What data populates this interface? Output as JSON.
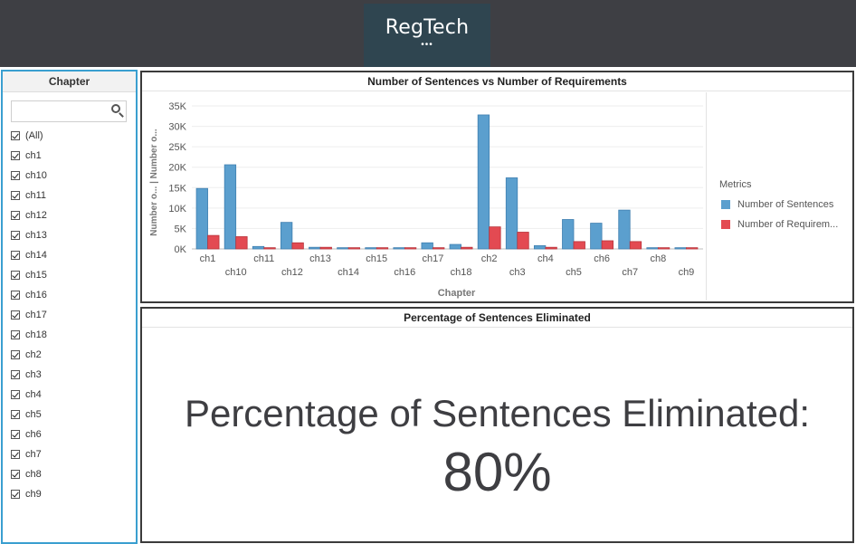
{
  "brand": {
    "title": "RegTech",
    "dots": "•••"
  },
  "filter": {
    "title": "Chapter",
    "search_placeholder": "",
    "items": [
      "(All)",
      "ch1",
      "ch10",
      "ch11",
      "ch12",
      "ch13",
      "ch14",
      "ch15",
      "ch16",
      "ch17",
      "ch18",
      "ch2",
      "ch3",
      "ch4",
      "ch5",
      "ch6",
      "ch7",
      "ch8",
      "ch9"
    ]
  },
  "chart_panel": {
    "title": "Number of Sentences vs Number of Requirements"
  },
  "chart_data": {
    "type": "bar",
    "title": "Number of Sentences vs Number of Requirements",
    "xlabel": "Chapter",
    "ylabel": "Number o... | Number o...",
    "categories": [
      "ch1",
      "ch10",
      "ch11",
      "ch12",
      "ch13",
      "ch14",
      "ch15",
      "ch16",
      "ch17",
      "ch18",
      "ch2",
      "ch3",
      "ch4",
      "ch5",
      "ch6",
      "ch7",
      "ch8",
      "ch9"
    ],
    "series": [
      {
        "name": "Number of Sentences",
        "color": "#5b9fce",
        "values": [
          14800,
          20600,
          600,
          6500,
          400,
          300,
          300,
          300,
          1500,
          1100,
          32800,
          17400,
          800,
          7200,
          6300,
          9500,
          300,
          300
        ]
      },
      {
        "name": "Number of Requirem...",
        "color": "#e34a52",
        "values": [
          3300,
          3000,
          300,
          1500,
          400,
          300,
          300,
          300,
          300,
          400,
          5400,
          4100,
          400,
          1800,
          2000,
          1800,
          300,
          300
        ]
      }
    ],
    "ylim": [
      0,
      37000
    ],
    "yticks": [
      0,
      5000,
      10000,
      15000,
      20000,
      25000,
      30000,
      35000
    ],
    "ytick_labels": [
      "0K",
      "5K",
      "10K",
      "15K",
      "20K",
      "25K",
      "30K",
      "35K"
    ],
    "grid": true,
    "legend_title": "Metrics",
    "legend_position": "right"
  },
  "kpi": {
    "title": "Percentage of Sentences Eliminated",
    "line1": "Percentage of Sentences Eliminated:",
    "value": "80%"
  }
}
